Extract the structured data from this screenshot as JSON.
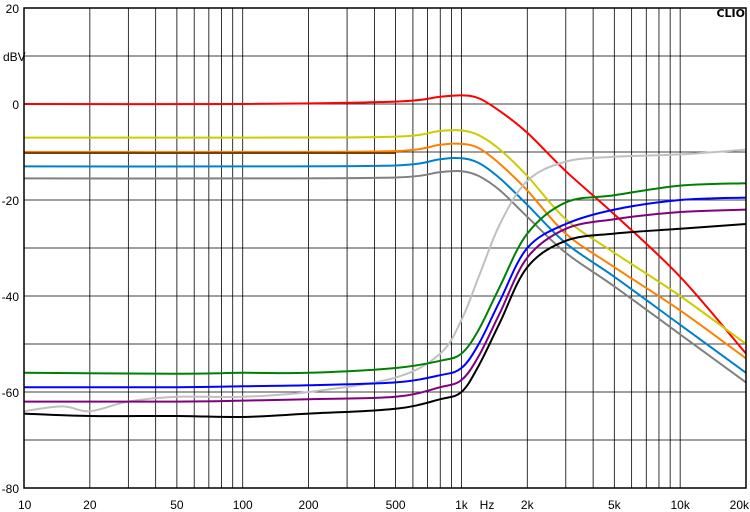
{
  "chart_data": {
    "type": "line",
    "brand": "CLIO",
    "ylabel": "dBV",
    "xlabel": "Hz",
    "x_scale": "log",
    "xlim": [
      10,
      20000
    ],
    "ylim": [
      -80,
      20
    ],
    "grid": true,
    "x_tick_labels": [
      {
        "value": 10,
        "label": "10"
      },
      {
        "value": 20,
        "label": "20"
      },
      {
        "value": 50,
        "label": "50"
      },
      {
        "value": 100,
        "label": "100"
      },
      {
        "value": 200,
        "label": "200"
      },
      {
        "value": 500,
        "label": "500"
      },
      {
        "value": 1000,
        "label": "1k"
      },
      {
        "value": 2000,
        "label": "2k"
      },
      {
        "value": 5000,
        "label": "5k"
      },
      {
        "value": 10000,
        "label": "10k"
      },
      {
        "value": 20000,
        "label": "20k"
      }
    ],
    "y_tick_labels": [
      {
        "value": 20,
        "label": "20"
      },
      {
        "value": 0,
        "label": "0"
      },
      {
        "value": -20,
        "label": "-20"
      },
      {
        "value": -40,
        "label": "-40"
      },
      {
        "value": -60,
        "label": "-60"
      },
      {
        "value": -80,
        "label": "-80"
      }
    ],
    "series": [
      {
        "color": "#ff0000",
        "x": [
          10,
          100,
          500,
          800,
          1000,
          1200,
          1500,
          2000,
          3000,
          5000,
          10000,
          20000
        ],
        "y": [
          0,
          0,
          0.5,
          1.5,
          1.8,
          1.2,
          -1.5,
          -6,
          -14,
          -23,
          -36,
          -52
        ]
      },
      {
        "color": "#cccc00",
        "x": [
          10,
          100,
          500,
          800,
          1000,
          1200,
          1500,
          2000,
          3000,
          5000,
          10000,
          20000
        ],
        "y": [
          -7,
          -7,
          -6.8,
          -5.6,
          -5.5,
          -6.5,
          -9.5,
          -15,
          -24,
          -31,
          -40,
          -50
        ]
      },
      {
        "color": "#ff8000",
        "x": [
          10,
          100,
          500,
          800,
          1000,
          1200,
          1500,
          2000,
          3000,
          5000,
          10000,
          20000
        ],
        "y": [
          -10,
          -10,
          -9.8,
          -8.5,
          -8.3,
          -9.2,
          -12.5,
          -18,
          -27,
          -34,
          -43,
          -53
        ]
      },
      {
        "color": "#804000",
        "x": [
          10,
          100,
          500
        ],
        "y": [
          -10.2,
          -10.2,
          -10.2
        ]
      },
      {
        "color": "#0080cc",
        "x": [
          10,
          100,
          500,
          800,
          1000,
          1200,
          1500,
          2000,
          3000,
          5000,
          10000,
          20000
        ],
        "y": [
          -13,
          -13,
          -12.8,
          -11.5,
          -11.3,
          -12.3,
          -15.5,
          -21,
          -29,
          -36,
          -46,
          -56
        ]
      },
      {
        "color": "#808080",
        "x": [
          10,
          100,
          500,
          800,
          1000,
          1200,
          1500,
          2000,
          3000,
          5000,
          10000,
          20000
        ],
        "y": [
          -15.5,
          -15.5,
          -15.3,
          -14.2,
          -14.0,
          -15.0,
          -18,
          -23.5,
          -31,
          -38,
          -48,
          -58
        ]
      },
      {
        "color": "#c0c0c0",
        "x": [
          10,
          15,
          20,
          30,
          50,
          100,
          200,
          500,
          800,
          1000,
          1200,
          1500,
          2000,
          3000,
          5000,
          10000,
          20000
        ],
        "y": [
          -64,
          -63,
          -64,
          -62,
          -61,
          -61,
          -60,
          -57,
          -52,
          -45,
          -36,
          -25,
          -16,
          -12,
          -11,
          -10.5,
          -9.5
        ]
      },
      {
        "color": "#008000",
        "x": [
          10,
          50,
          100,
          200,
          500,
          800,
          1000,
          1200,
          1500,
          2000,
          3000,
          5000,
          10000,
          20000
        ],
        "y": [
          -56,
          -56.2,
          -56,
          -56,
          -55,
          -53.5,
          -52,
          -47,
          -38,
          -27,
          -20.5,
          -19,
          -17,
          -16.5
        ]
      },
      {
        "color": "#0000ff",
        "x": [
          10,
          50,
          100,
          200,
          500,
          800,
          1000,
          1200,
          1500,
          2000,
          3000,
          5000,
          10000,
          20000
        ],
        "y": [
          -59,
          -59,
          -58.8,
          -58.6,
          -58,
          -56.5,
          -55,
          -50,
          -41,
          -30,
          -25,
          -22,
          -20,
          -19.5
        ]
      },
      {
        "color": "#800080",
        "x": [
          10,
          50,
          100,
          200,
          500,
          800,
          1000,
          1200,
          1500,
          2000,
          3000,
          5000,
          10000,
          20000
        ],
        "y": [
          -62,
          -62,
          -61.8,
          -61.5,
          -61,
          -59,
          -57.5,
          -52.5,
          -43.5,
          -32,
          -26,
          -24,
          -22.5,
          -22
        ]
      },
      {
        "color": "#000000",
        "x": [
          10,
          20,
          50,
          100,
          200,
          500,
          800,
          1000,
          1200,
          1500,
          2000,
          3000,
          5000,
          10000,
          20000
        ],
        "y": [
          -64.5,
          -65,
          -65,
          -65.2,
          -64.5,
          -63.5,
          -61.5,
          -60,
          -54.5,
          -45.5,
          -34,
          -28.5,
          -27,
          -26,
          -25
        ]
      }
    ]
  }
}
